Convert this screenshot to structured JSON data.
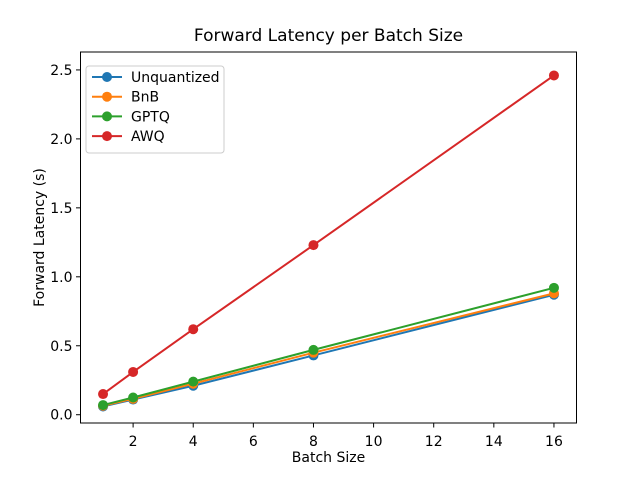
{
  "chart_data": {
    "type": "line",
    "title": "Forward Latency per Batch Size",
    "xlabel": "Batch Size",
    "ylabel": "Forward Latency (s)",
    "x": [
      1,
      2,
      4,
      8,
      16
    ],
    "series": [
      {
        "name": "Unquantized",
        "color": "#1f77b4",
        "values": [
          0.06,
          0.11,
          0.21,
          0.43,
          0.87
        ]
      },
      {
        "name": "BnB",
        "color": "#ff7f0e",
        "values": [
          0.065,
          0.115,
          0.225,
          0.45,
          0.88
        ]
      },
      {
        "name": "GPTQ",
        "color": "#2ca02c",
        "values": [
          0.07,
          0.125,
          0.24,
          0.47,
          0.92
        ]
      },
      {
        "name": "AWQ",
        "color": "#d62728",
        "values": [
          0.15,
          0.31,
          0.62,
          1.23,
          2.46
        ]
      }
    ],
    "xticks": [
      2,
      4,
      6,
      8,
      10,
      12,
      14,
      16
    ],
    "yticks": [
      "0.0",
      "0.5",
      "1.0",
      "1.5",
      "2.0",
      "2.5"
    ],
    "xlim": [
      0.25,
      16.75
    ],
    "ylim": [
      -0.06,
      2.63
    ],
    "grid": false,
    "legend_position": "upper left",
    "marker": "o",
    "line_width": 2,
    "marker_radius": 5,
    "background_color": "#ffffff",
    "spine_color": "#000000",
    "legend_border_color": "#cccccc"
  }
}
